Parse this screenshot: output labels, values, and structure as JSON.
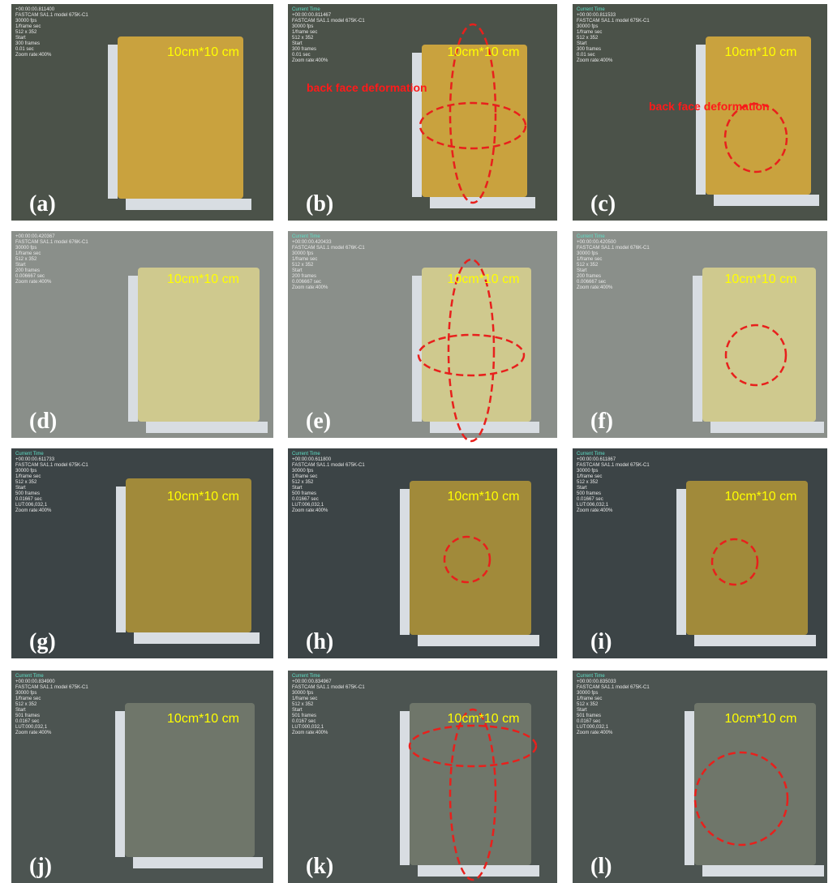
{
  "panels": [
    {
      "letter": "(a)",
      "size": "10cm*10 cm",
      "overlay": [
        "+00:00:00.811400",
        "FASTCAM SA1.1 model 675K-C1",
        "30000 fps",
        "1/frame sec",
        "512 x 352",
        "Start",
        "300 frames",
        "0.01 sec",
        "Zoom rate:400%"
      ]
    },
    {
      "letter": "(b)",
      "size": "10cm*10 cm",
      "annotation": "back face deformation",
      "overlay": [
        "Current Time",
        "+00:00:00.811467",
        "FASTCAM SA1.1 model 675K-C1",
        "30000 fps",
        "1/frame sec",
        "512 x 352",
        "Start",
        "300 frames",
        "0.01 sec",
        "Zoom rate:400%"
      ]
    },
    {
      "letter": "(c)",
      "size": "10cm*10 cm",
      "annotation": "back face deformation",
      "overlay": [
        "Current Time",
        "+00:00:00.811533",
        "FASTCAM SA1.1 model 675K-C1",
        "30000 fps",
        "1/frame sec",
        "512 x 352",
        "Start",
        "300 frames",
        "0.01 sec",
        "Zoom rate:400%"
      ]
    },
    {
      "letter": "(d)",
      "size": "10cm*10 cm",
      "overlay": [
        "+00:00:00.420367",
        "FASTCAM SA1.1 model 676K-C1",
        "30000 fps",
        "1/frame sec",
        "512 x 352",
        "Start",
        "200 frames",
        "0.006667 sec",
        "Zoom rate:400%"
      ]
    },
    {
      "letter": "(e)",
      "size": "10cm*10 cm",
      "overlay": [
        "Current Time",
        "+00:00:00.420433",
        "FASTCAM SA1.1 model 676K-C1",
        "30000 fps",
        "1/frame sec",
        "512 x 352",
        "Start",
        "200 frames",
        "0.006667 sec",
        "Zoom rate:400%"
      ]
    },
    {
      "letter": "(f)",
      "size": "10cm*10 cm",
      "overlay": [
        "Current Time",
        "+00:00:00.420500",
        "FASTCAM SA1.1 model 676K-C1",
        "30000 fps",
        "1/frame sec",
        "512 x 352",
        "Start",
        "200 frames",
        "0.006667 sec",
        "Zoom rate:400%"
      ]
    },
    {
      "letter": "(g)",
      "size": "10cm*10 cm",
      "overlay": [
        "Current Time",
        "+00:00:00.611733",
        "FASTCAM SA1.1 model 675K-C1",
        "30000 fps",
        "1/frame sec",
        "512 x 352",
        "Start",
        "500 frames",
        "0.01667 sec",
        "LUT:006,032,1",
        "Zoom rate:400%"
      ]
    },
    {
      "letter": "(h)",
      "size": "10cm*10 cm",
      "overlay": [
        "Current Time",
        "+00:00:00.611800",
        "FASTCAM SA1.1 model 675K-C1",
        "30000 fps",
        "1/frame sec",
        "512 x 352",
        "Start",
        "500 frames",
        "0.01667 sec",
        "LUT:006,032,1",
        "Zoom rate:400%"
      ]
    },
    {
      "letter": "(i)",
      "size": "10cm*10 cm",
      "overlay": [
        "Current Time",
        "+00:00:00.611867",
        "FASTCAM SA1.1 model 675K-C1",
        "30000 fps",
        "1/frame sec",
        "512 x 352",
        "Start",
        "500 frames",
        "0.01667 sec",
        "LUT:006,032,1",
        "Zoom rate:400%"
      ]
    },
    {
      "letter": "(j)",
      "size": "10cm*10 cm",
      "overlay": [
        "Current Time",
        "+00:00:00.834900",
        "FASTCAM SA1.1 model 675K-C1",
        "30000 fps",
        "1/frame sec",
        "512 x 352",
        "Start",
        "501 frames",
        "0.0167 sec",
        "LUT:000,032,1",
        "Zoom rate:400%"
      ]
    },
    {
      "letter": "(k)",
      "size": "10cm*10 cm",
      "overlay": [
        "Current Time",
        "+00:00:00.834967",
        "FASTCAM SA1.1 model 675K-C1",
        "30000 fps",
        "1/frame sec",
        "512 x 352",
        "Start",
        "501 frames",
        "0.0167 sec",
        "LUT:000,032,1",
        "Zoom rate:400%"
      ]
    },
    {
      "letter": "(l)",
      "size": "10cm*10 cm",
      "overlay": [
        "Current Time",
        "+00:00:00.835033",
        "FASTCAM SA1.1 model 675K-C1",
        "30000 fps",
        "1/frame sec",
        "512 x 352",
        "Start",
        "501 frames",
        "0.0167 sec",
        "LUT:000,032,1",
        "Zoom rate:400%"
      ]
    }
  ]
}
